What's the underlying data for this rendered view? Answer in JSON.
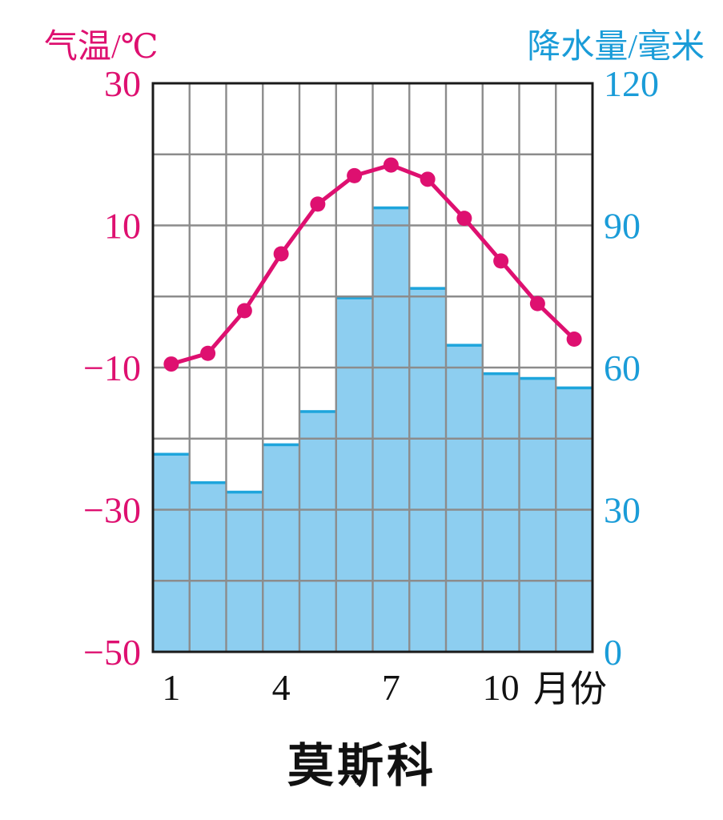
{
  "page": {
    "background": "#ffffff"
  },
  "colors": {
    "temperature": "#de1070",
    "precipitation_text": "#1a9cd8",
    "bar_fill": "#8dcef0",
    "bar_top_stripe": "#1ea5dc",
    "grid": "#8c8c8c",
    "plot_border": "#1a1a1a",
    "x_text": "#111111",
    "title_text": "#111111"
  },
  "chart_data": {
    "type": "combo",
    "title": "莫斯科",
    "categories": [
      1,
      2,
      3,
      4,
      5,
      6,
      7,
      8,
      9,
      10,
      11,
      12
    ],
    "series": [
      {
        "name": "气温",
        "type": "line",
        "axis": "left",
        "unit": "℃",
        "color": "#de1070",
        "values": [
          -9.5,
          -8,
          -2,
          6,
          13,
          17,
          18.5,
          16.5,
          11,
          5,
          -1,
          -6
        ]
      },
      {
        "name": "降水量",
        "type": "bar",
        "axis": "right",
        "unit": "毫米",
        "color": "#8dcef0",
        "values": [
          42,
          36,
          34,
          44,
          51,
          75,
          94,
          77,
          65,
          59,
          58,
          56
        ]
      }
    ],
    "left_axis": {
      "label": "气温/℃",
      "min": -50,
      "max": 30,
      "gridline_step": 10,
      "tick_values": [
        30,
        10,
        -10,
        -30,
        -50
      ],
      "tick_labels": [
        "30",
        "10",
        "−10",
        "−30",
        "−50"
      ]
    },
    "right_axis": {
      "label": "降水量/毫米",
      "min": 0,
      "max": 120,
      "gridline_step": 15,
      "tick_values": [
        120,
        90,
        60,
        30,
        0
      ],
      "tick_labels": [
        "120",
        "90",
        "60",
        "30",
        "0"
      ]
    },
    "x_axis": {
      "label": "月份",
      "tick_months": [
        1,
        4,
        7,
        10
      ],
      "tick_labels": [
        "1",
        "4",
        "7",
        "10"
      ]
    },
    "grid": true,
    "legend": "none"
  }
}
